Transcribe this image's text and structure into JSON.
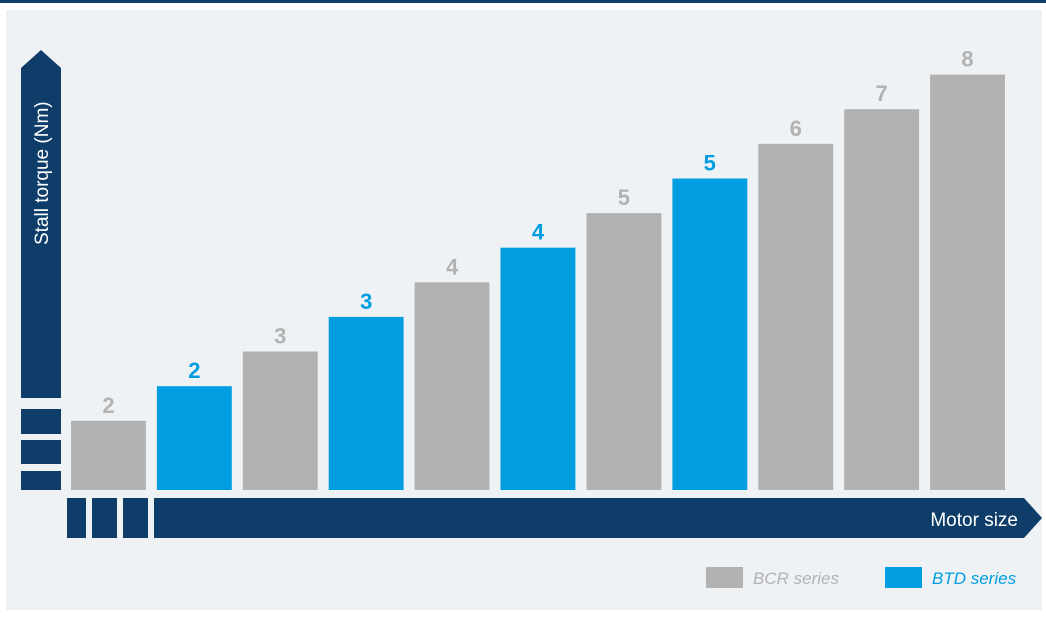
{
  "chart_data": {
    "type": "bar",
    "xlabel": "Motor size",
    "ylabel": "Stall torque (Nm)",
    "series": [
      {
        "name": "BCR series",
        "color": "#b2b2b2"
      },
      {
        "name": "BTD series",
        "color": "#009ee0"
      }
    ],
    "bars": [
      {
        "label": "2",
        "series": "BCR series",
        "value": 2
      },
      {
        "label": "2",
        "series": "BTD series",
        "value": 3
      },
      {
        "label": "3",
        "series": "BCR series",
        "value": 4
      },
      {
        "label": "3",
        "series": "BTD series",
        "value": 5
      },
      {
        "label": "4",
        "series": "BCR series",
        "value": 6
      },
      {
        "label": "4",
        "series": "BTD series",
        "value": 7
      },
      {
        "label": "5",
        "series": "BCR series",
        "value": 8
      },
      {
        "label": "5",
        "series": "BTD series",
        "value": 9
      },
      {
        "label": "6",
        "series": "BCR series",
        "value": 10
      },
      {
        "label": "7",
        "series": "BCR series",
        "value": 11
      },
      {
        "label": "8",
        "series": "BCR series",
        "value": 12
      }
    ],
    "ylim": [
      0,
      13
    ],
    "grid": false,
    "legend_position": "bottom-right",
    "axis_color": "#0d3d68"
  }
}
